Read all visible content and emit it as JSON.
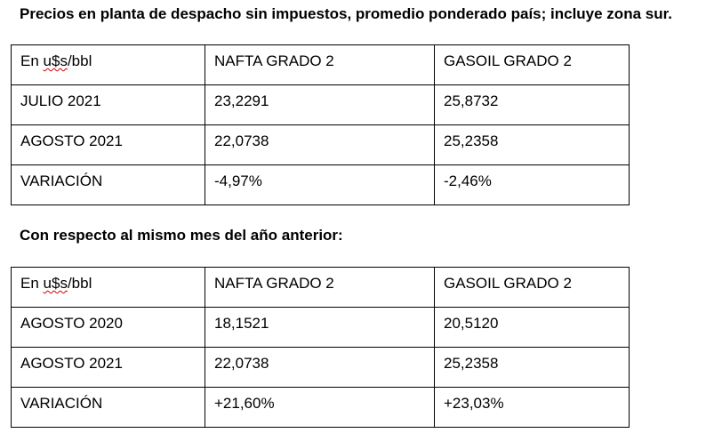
{
  "heading_main": "Precios en planta de despacho sin impuestos, promedio ponderado país; incluye zona sur.",
  "heading_secondary": "Con respecto al mismo mes del año anterior:",
  "table1": {
    "header": {
      "unit_prefix": "En ",
      "unit_word": "u$s",
      "unit_suffix": "/bbl",
      "col2": "NAFTA GRADO 2",
      "col3": "GASOIL GRADO 2"
    },
    "rows": [
      {
        "label": "JULIO 2021",
        "nafta": "23,2291",
        "gasoil": "25,8732"
      },
      {
        "label": "AGOSTO 2021",
        "nafta": "22,0738",
        "gasoil": "25,2358"
      },
      {
        "label": "VARIACIÓN",
        "nafta": "-4,97%",
        "gasoil": "-2,46%"
      }
    ]
  },
  "table2": {
    "header": {
      "unit_prefix": "En ",
      "unit_word": "u$s",
      "unit_suffix": "/bbl",
      "col2": "NAFTA GRADO 2",
      "col3": "GASOIL GRADO 2"
    },
    "rows": [
      {
        "label": "AGOSTO 2020",
        "nafta": "18,1521",
        "gasoil": "20,5120"
      },
      {
        "label": "AGOSTO 2021",
        "nafta": "22,0738",
        "gasoil": "25,2358"
      },
      {
        "label": "VARIACIÓN",
        "nafta": "+21,60%",
        "gasoil": "+23,03%"
      }
    ]
  }
}
